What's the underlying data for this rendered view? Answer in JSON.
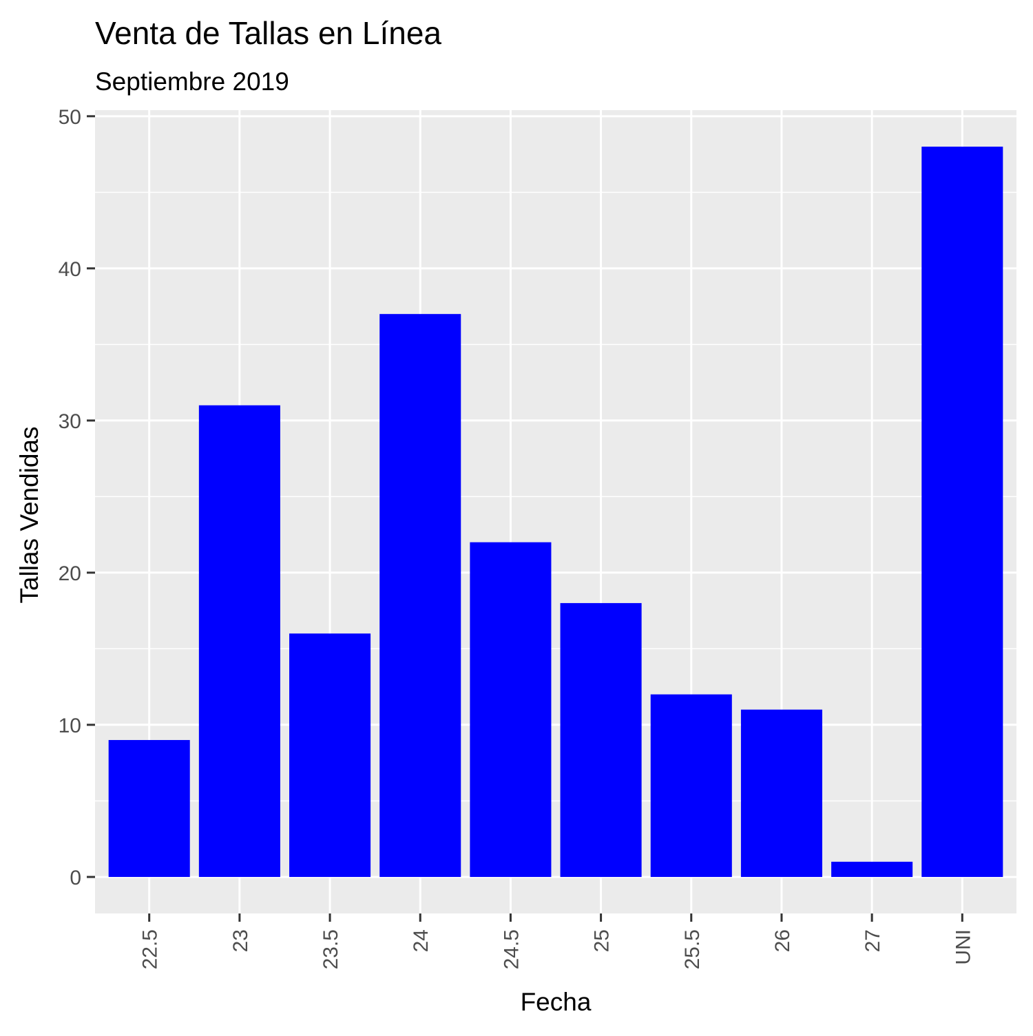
{
  "chart_data": {
    "type": "bar",
    "title": "Venta de Tallas en Línea",
    "subtitle": "Septiembre 2019",
    "xlabel": "Fecha",
    "ylabel": "Tallas Vendidas",
    "categories": [
      "22.5",
      "23",
      "23.5",
      "24",
      "24.5",
      "25",
      "25.5",
      "26",
      "27",
      "UNI"
    ],
    "values": [
      9,
      31,
      16,
      37,
      22,
      18,
      12,
      11,
      1,
      48
    ],
    "ylim": [
      -2.4,
      50.4
    ],
    "yticks": [
      0,
      10,
      20,
      30,
      40,
      50
    ],
    "grid": true,
    "legend": "none",
    "bar_color": "#0000FF",
    "panel_background": "#EBEBEB",
    "grid_color": "#FFFFFF"
  }
}
